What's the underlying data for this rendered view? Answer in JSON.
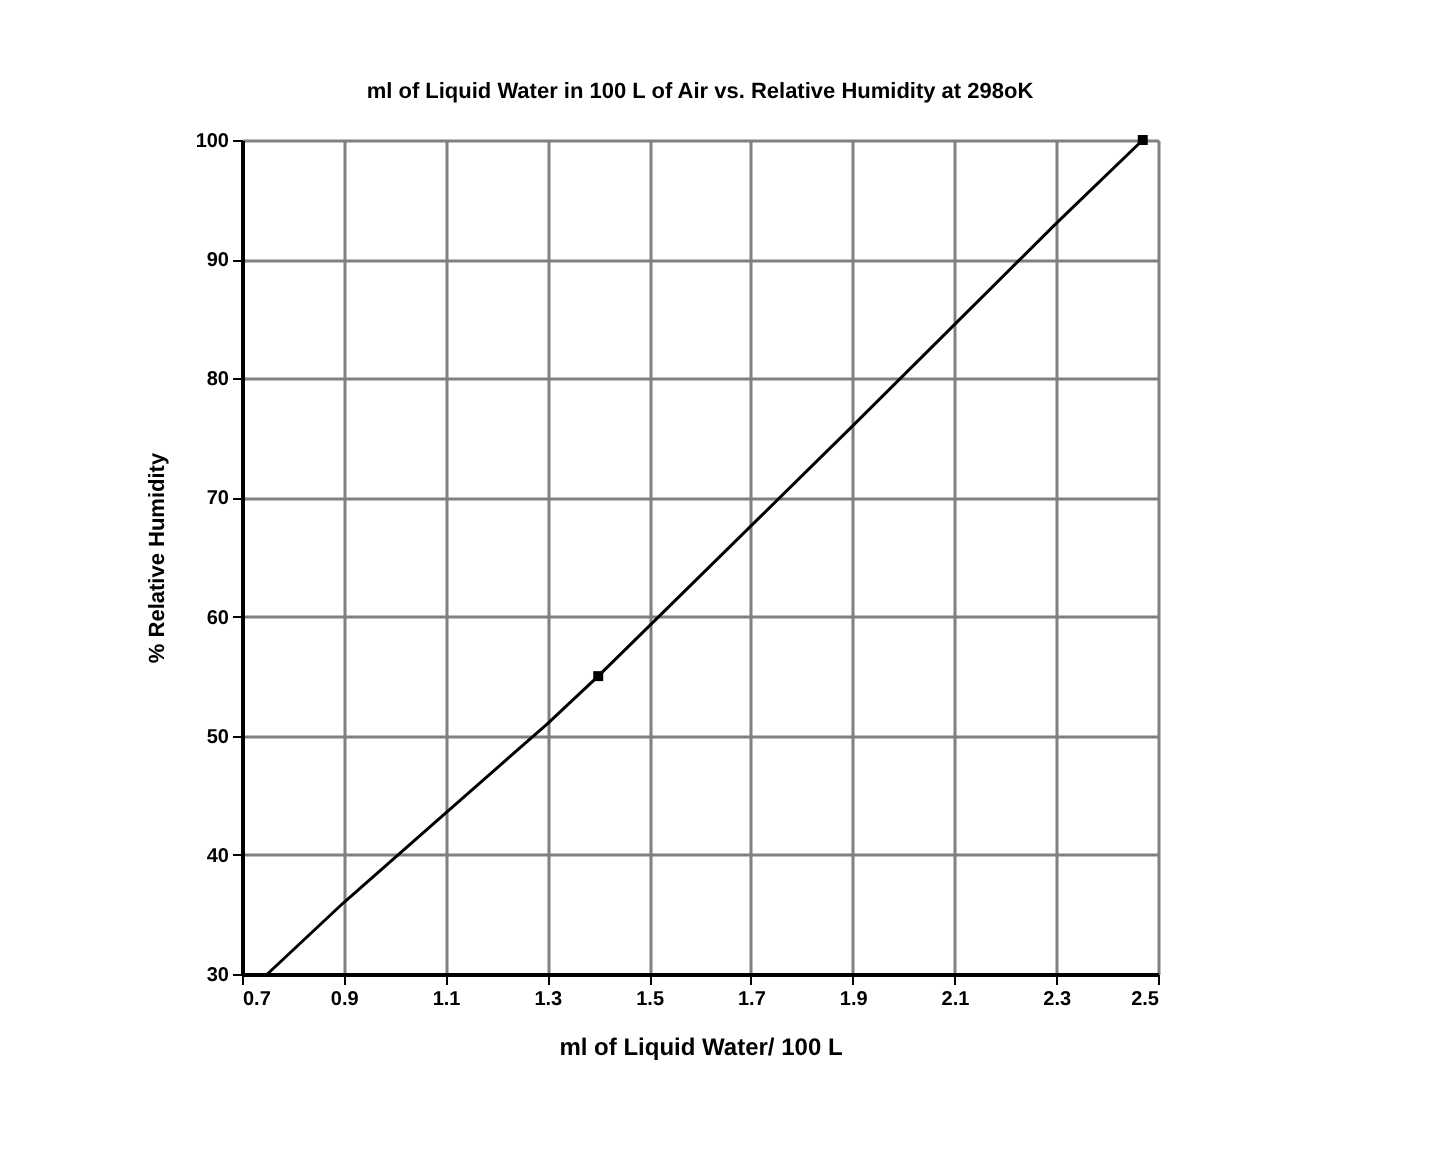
{
  "chart_data": {
    "type": "line",
    "title": "ml of Liquid Water in 100 L of Air vs. Relative Humidity at 298oK",
    "xlabel": "ml of Liquid Water/ 100 L",
    "ylabel": "% Relative Humidity",
    "xlim": [
      0.7,
      2.5
    ],
    "xticks": [
      0.7,
      0.9,
      1.1,
      1.3,
      1.5,
      1.7,
      1.9,
      2.1,
      2.3,
      2.5
    ],
    "ylim": [
      30,
      100
    ],
    "yticks": [
      30,
      40,
      50,
      60,
      70,
      80,
      90,
      100
    ],
    "grid": true,
    "series": [
      {
        "color": "#000000",
        "marker": "none",
        "x": [
          0.75,
          0.9,
          1.1,
          1.3,
          1.4,
          1.5,
          1.9,
          2.3,
          2.47
        ],
        "values": [
          30,
          36,
          43.5,
          51,
          55,
          59.2,
          76,
          93,
          100
        ]
      },
      {
        "type": "scatter",
        "color": "#000000",
        "marker": "square",
        "x": [
          1.4,
          2.47
        ],
        "values": [
          55,
          100
        ]
      }
    ]
  }
}
